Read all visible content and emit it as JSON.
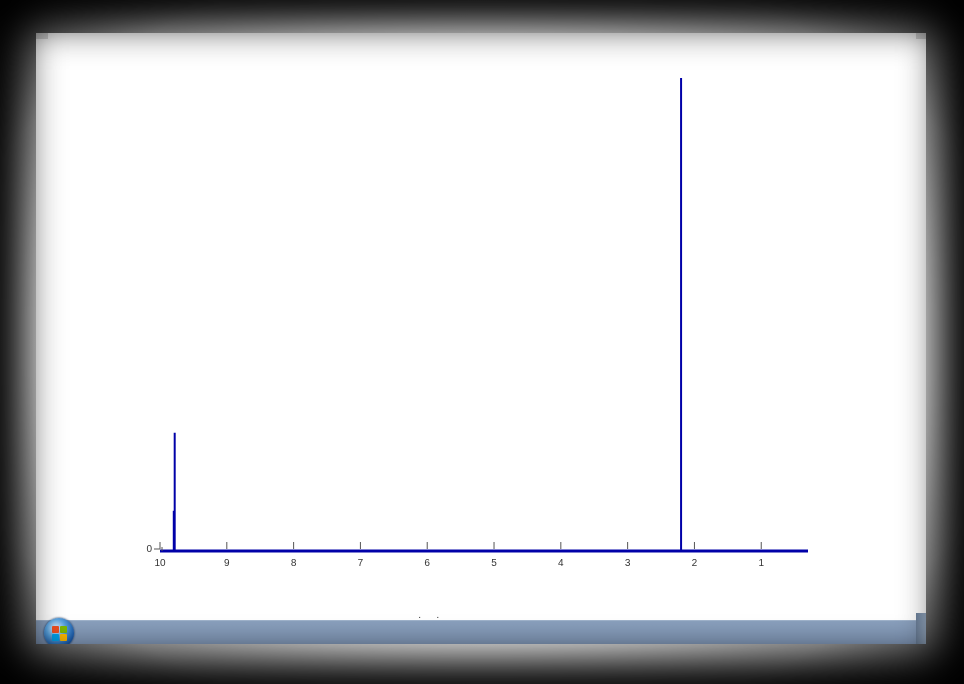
{
  "chart_data": {
    "type": "line",
    "title": "",
    "xlabel": "",
    "ylabel": "",
    "x_reversed": true,
    "xlim": [
      10,
      0.3
    ],
    "ylim": [
      0,
      100
    ],
    "x_ticks": [
      "10",
      "9",
      "8",
      "7",
      "6",
      "5",
      "4",
      "3",
      "2",
      "1"
    ],
    "y_ticks": [
      "0"
    ],
    "grid": false,
    "legend": "none",
    "color": "#0000a8",
    "peaks": [
      {
        "x": 9.78,
        "height": 25
      },
      {
        "x": 9.79,
        "height": 8.5
      },
      {
        "x": 2.2,
        "height": 100
      }
    ]
  },
  "taskbar": {
    "start_icon": "windows-start-orb-icon",
    "show_desktop_icon": "show-desktop-button"
  },
  "footer": {
    "dots": "· ·"
  }
}
